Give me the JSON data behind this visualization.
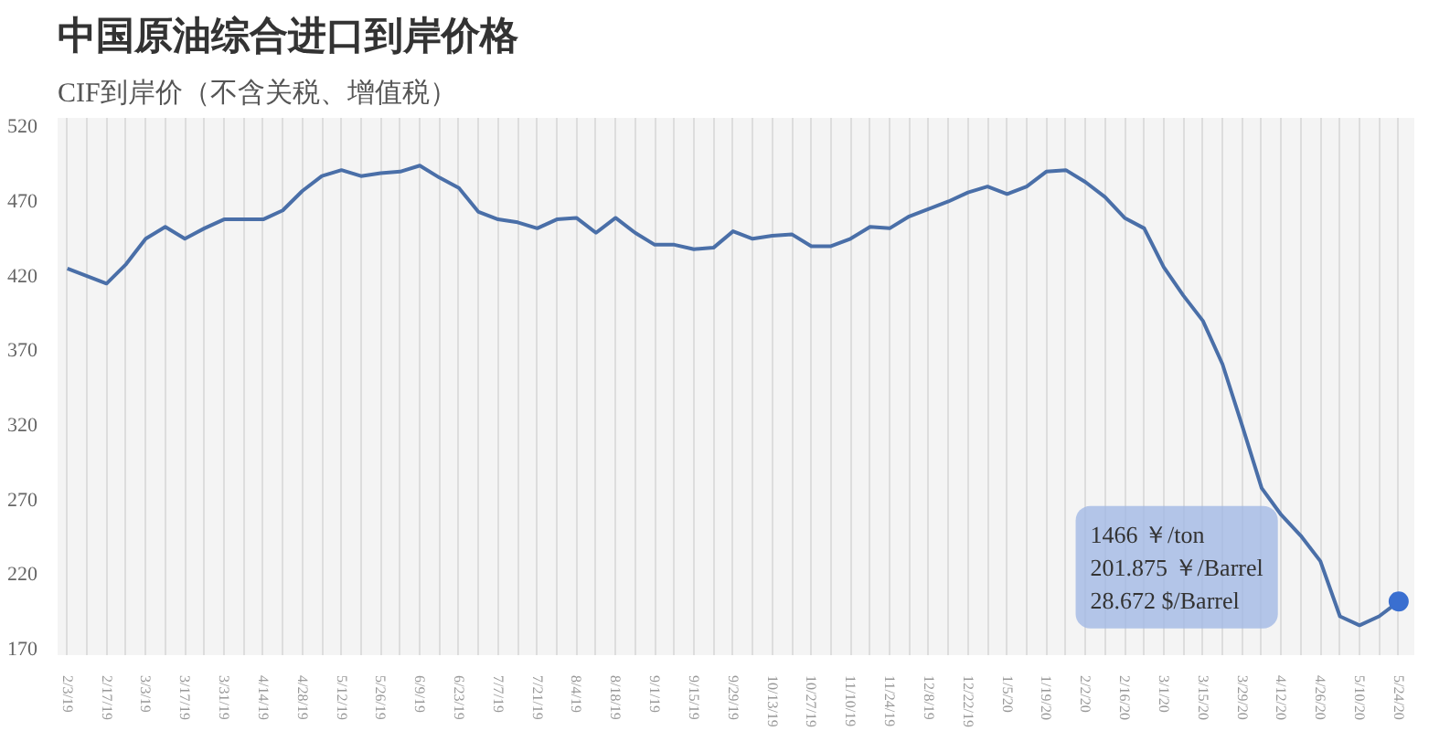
{
  "chart_data": {
    "type": "line",
    "title": "中国原油综合进口到岸价格",
    "subtitle": "CIF到岸价（不含关税、增值税）",
    "categories": [
      "2/3/19",
      null,
      "2/17/19",
      null,
      "3/3/19",
      null,
      "3/17/19",
      null,
      "3/31/19",
      null,
      "4/14/19",
      null,
      "4/28/19",
      null,
      "5/12/19",
      null,
      "5/26/19",
      null,
      "6/9/19",
      null,
      "6/23/19",
      null,
      "7/7/19",
      null,
      "7/21/19",
      null,
      "8/4/19",
      null,
      "8/18/19",
      null,
      "9/1/19",
      null,
      "9/15/19",
      null,
      "9/29/19",
      null,
      "10/13/19",
      null,
      "10/27/19",
      null,
      "11/10/19",
      null,
      "11/24/19",
      null,
      "12/8/19",
      null,
      "12/22/19",
      null,
      "1/5/20",
      null,
      "1/19/20",
      null,
      "2/2/20",
      null,
      "2/16/20",
      null,
      "3/1/20",
      null,
      "3/15/20",
      null,
      "3/29/20",
      null,
      "4/12/20",
      null,
      "4/26/20",
      null,
      "5/10/20",
      null,
      "5/24/20"
    ],
    "series": [
      {
        "color": "#4a6fa8",
        "values": [
          424,
          419,
          414,
          427,
          444,
          452,
          444,
          451,
          457,
          457,
          457,
          463,
          476,
          486,
          490,
          486,
          488,
          489,
          493,
          485,
          478,
          462,
          457,
          455,
          451,
          457,
          458,
          448,
          458,
          448,
          440,
          440,
          437,
          438,
          449,
          444,
          446,
          447,
          439,
          439,
          444,
          452,
          451,
          459,
          464,
          469,
          475,
          479,
          474,
          479,
          489,
          490,
          482,
          472,
          458,
          451,
          425,
          406,
          389,
          360,
          319,
          277,
          259,
          245,
          228,
          191,
          185,
          191,
          201
        ]
      },
      {
        "type": "scatter",
        "color": "#3a6fd0",
        "x": [
          "5/24/20"
        ],
        "values": [
          201
        ]
      }
    ],
    "ylim": [
      165,
      525
    ],
    "yticks": [
      170,
      220,
      270,
      320,
      370,
      420,
      470,
      520
    ],
    "grid": "x",
    "annotations": [
      "1466 ￥/ton\n201.875 ￥/Barrel\n28.672 $/Barrel"
    ]
  }
}
